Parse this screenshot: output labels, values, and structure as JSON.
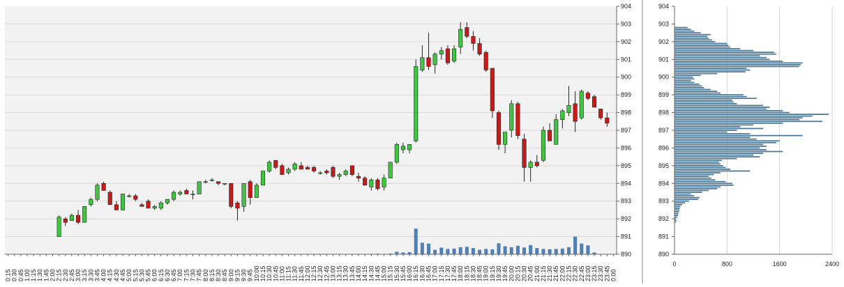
{
  "colors": {
    "plot_bg": "#f2f2f2",
    "up": "#3ec63e",
    "down": "#c91a1a",
    "volume": "#4f7fb4",
    "profile": "#4a7896",
    "grid": "#d6d6d6"
  },
  "chart_data": [
    {
      "type": "candlestick",
      "title": "",
      "ylim": [
        890,
        904
      ],
      "y_ticks": [
        "890",
        "891",
        "892",
        "893",
        "894",
        "895",
        "896",
        "897",
        "898",
        "899",
        "900",
        "901",
        "902",
        "903",
        "904"
      ],
      "x_ticks": [
        "0:15",
        "0:30",
        "0:45",
        "1:00",
        "1:15",
        "1:30",
        "1:45",
        "2:00",
        "2:15",
        "2:30",
        "2:45",
        "3:00",
        "3:15",
        "3:30",
        "3:45",
        "4:00",
        "4:15",
        "4:30",
        "4:45",
        "5:00",
        "5:15",
        "5:30",
        "5:45",
        "6:00",
        "6:15",
        "6:30",
        "6:45",
        "7:00",
        "7:15",
        "7:30",
        "7:45",
        "8:00",
        "8:15",
        "8:30",
        "8:45",
        "9:00",
        "9:15",
        "9:30",
        "9:45",
        "10:00",
        "10:15",
        "10:30",
        "10:45",
        "11:00",
        "11:15",
        "11:30",
        "11:45",
        "12:00",
        "12:15",
        "12:30",
        "12:45",
        "13:00",
        "13:15",
        "13:30",
        "13:45",
        "14:00",
        "14:15",
        "14:30",
        "14:45",
        "15:00",
        "15:15",
        "15:30",
        "15:45",
        "16:00",
        "16:15",
        "16:30",
        "16:45",
        "17:00",
        "17:15",
        "17:30",
        "17:45",
        "18:00",
        "18:15",
        "18:30",
        "18:45",
        "19:00",
        "19:15",
        "19:30",
        "19:45",
        "20:00",
        "20:15",
        "20:30",
        "20:45",
        "21:00",
        "21:15",
        "21:30",
        "21:45",
        "22:00",
        "22:15",
        "22:30",
        "22:45",
        "23:00",
        "23:15",
        "23:30",
        "23:45",
        "0:00"
      ],
      "candles": [
        {
          "t": "2:15",
          "o": 891.0,
          "h": 892.2,
          "l": 891.0,
          "c": 892.1
        },
        {
          "t": "2:30",
          "o": 892.0,
          "h": 892.1,
          "l": 891.6,
          "c": 891.8
        },
        {
          "t": "2:45",
          "o": 891.9,
          "h": 892.3,
          "l": 891.9,
          "c": 892.2
        },
        {
          "t": "3:00",
          "o": 892.2,
          "h": 892.5,
          "l": 891.7,
          "c": 891.8
        },
        {
          "t": "3:15",
          "o": 891.8,
          "h": 892.7,
          "l": 891.8,
          "c": 892.7
        },
        {
          "t": "3:30",
          "o": 892.8,
          "h": 893.2,
          "l": 892.7,
          "c": 893.1
        },
        {
          "t": "3:45",
          "o": 893.1,
          "h": 894.0,
          "l": 893.0,
          "c": 893.9
        },
        {
          "t": "4:00",
          "o": 894.0,
          "h": 894.1,
          "l": 893.6,
          "c": 893.6
        },
        {
          "t": "4:15",
          "o": 893.5,
          "h": 893.6,
          "l": 892.8,
          "c": 892.8
        },
        {
          "t": "4:30",
          "o": 892.8,
          "h": 893.0,
          "l": 892.5,
          "c": 892.5
        },
        {
          "t": "4:45",
          "o": 892.5,
          "h": 893.4,
          "l": 892.5,
          "c": 893.4
        },
        {
          "t": "5:00",
          "o": 893.3,
          "h": 893.4,
          "l": 893.2,
          "c": 893.3
        },
        {
          "t": "5:15",
          "o": 893.3,
          "h": 893.4,
          "l": 893.0,
          "c": 893.1
        },
        {
          "t": "5:30",
          "o": 892.8,
          "h": 892.9,
          "l": 892.7,
          "c": 892.7
        },
        {
          "t": "5:45",
          "o": 893.0,
          "h": 893.1,
          "l": 892.6,
          "c": 892.6
        },
        {
          "t": "6:00",
          "o": 892.6,
          "h": 892.8,
          "l": 892.5,
          "c": 892.7
        },
        {
          "t": "6:15",
          "o": 892.6,
          "h": 893.0,
          "l": 892.5,
          "c": 892.9
        },
        {
          "t": "6:30",
          "o": 892.9,
          "h": 893.1,
          "l": 892.8,
          "c": 893.1
        },
        {
          "t": "6:45",
          "o": 893.1,
          "h": 893.6,
          "l": 893.0,
          "c": 893.5
        },
        {
          "t": "7:00",
          "o": 893.4,
          "h": 893.6,
          "l": 893.3,
          "c": 893.5
        },
        {
          "t": "7:15",
          "o": 893.6,
          "h": 893.7,
          "l": 893.4,
          "c": 893.4
        },
        {
          "t": "7:30",
          "o": 893.4,
          "h": 893.6,
          "l": 893.1,
          "c": 893.4
        },
        {
          "t": "7:45",
          "o": 893.4,
          "h": 894.1,
          "l": 893.4,
          "c": 894.1
        },
        {
          "t": "8:00",
          "o": 894.1,
          "h": 894.2,
          "l": 894.0,
          "c": 894.1
        },
        {
          "t": "8:15",
          "o": 894.2,
          "h": 894.3,
          "l": 894.1,
          "c": 894.2
        },
        {
          "t": "8:30",
          "o": 894.1,
          "h": 894.1,
          "l": 893.9,
          "c": 894.0
        },
        {
          "t": "8:45",
          "o": 894.0,
          "h": 894.0,
          "l": 893.9,
          "c": 894.0
        },
        {
          "t": "9:00",
          "o": 894.0,
          "h": 894.0,
          "l": 892.6,
          "c": 892.7
        },
        {
          "t": "9:15",
          "o": 892.9,
          "h": 893.0,
          "l": 891.9,
          "c": 892.6
        },
        {
          "t": "9:30",
          "o": 892.7,
          "h": 894.0,
          "l": 892.4,
          "c": 894.0
        },
        {
          "t": "9:45",
          "o": 894.1,
          "h": 894.2,
          "l": 892.8,
          "c": 893.2
        },
        {
          "t": "10:00",
          "o": 893.2,
          "h": 894.0,
          "l": 893.2,
          "c": 893.9
        },
        {
          "t": "10:15",
          "o": 893.9,
          "h": 894.7,
          "l": 893.9,
          "c": 894.7
        },
        {
          "t": "10:30",
          "o": 894.7,
          "h": 895.3,
          "l": 894.6,
          "c": 895.2
        },
        {
          "t": "10:45",
          "o": 895.3,
          "h": 895.3,
          "l": 894.8,
          "c": 894.9
        },
        {
          "t": "11:00",
          "o": 895.0,
          "h": 895.1,
          "l": 894.5,
          "c": 894.5
        },
        {
          "t": "11:15",
          "o": 894.6,
          "h": 894.9,
          "l": 894.5,
          "c": 894.8
        },
        {
          "t": "11:30",
          "o": 894.8,
          "h": 895.2,
          "l": 894.7,
          "c": 895.1
        },
        {
          "t": "11:45",
          "o": 895.0,
          "h": 895.2,
          "l": 894.8,
          "c": 894.8
        },
        {
          "t": "12:00",
          "o": 894.9,
          "h": 895.0,
          "l": 894.8,
          "c": 894.8
        },
        {
          "t": "12:15",
          "o": 894.9,
          "h": 895.0,
          "l": 894.6,
          "c": 894.7
        },
        {
          "t": "12:30",
          "o": 894.6,
          "h": 894.7,
          "l": 894.5,
          "c": 894.6
        },
        {
          "t": "12:45",
          "o": 894.7,
          "h": 894.8,
          "l": 894.5,
          "c": 894.6
        },
        {
          "t": "13:00",
          "o": 894.9,
          "h": 895.0,
          "l": 894.3,
          "c": 894.4
        },
        {
          "t": "13:15",
          "o": 894.4,
          "h": 894.6,
          "l": 894.2,
          "c": 894.5
        },
        {
          "t": "13:30",
          "o": 894.5,
          "h": 894.8,
          "l": 894.4,
          "c": 894.7
        },
        {
          "t": "13:45",
          "o": 895.0,
          "h": 895.0,
          "l": 894.4,
          "c": 894.5
        },
        {
          "t": "14:00",
          "o": 894.4,
          "h": 894.6,
          "l": 894.1,
          "c": 894.3
        },
        {
          "t": "14:15",
          "o": 894.3,
          "h": 894.4,
          "l": 893.9,
          "c": 893.9
        },
        {
          "t": "14:30",
          "o": 893.8,
          "h": 894.3,
          "l": 893.6,
          "c": 894.2
        },
        {
          "t": "14:45",
          "o": 894.2,
          "h": 894.3,
          "l": 893.6,
          "c": 893.7
        },
        {
          "t": "15:00",
          "o": 893.8,
          "h": 894.5,
          "l": 893.6,
          "c": 894.3
        },
        {
          "t": "15:15",
          "o": 894.3,
          "h": 895.2,
          "l": 894.3,
          "c": 895.2
        },
        {
          "t": "15:30",
          "o": 895.2,
          "h": 896.3,
          "l": 895.1,
          "c": 896.2
        },
        {
          "t": "15:45",
          "o": 895.9,
          "h": 896.3,
          "l": 895.7,
          "c": 896.1
        },
        {
          "t": "16:00",
          "o": 895.9,
          "h": 896.2,
          "l": 895.7,
          "c": 896.2
        },
        {
          "t": "16:15",
          "o": 896.4,
          "h": 901.0,
          "l": 896.3,
          "c": 900.6
        },
        {
          "t": "16:30",
          "o": 900.4,
          "h": 901.8,
          "l": 900.3,
          "c": 901.1
        },
        {
          "t": "16:45",
          "o": 901.1,
          "h": 902.5,
          "l": 900.4,
          "c": 900.6
        },
        {
          "t": "17:00",
          "o": 900.7,
          "h": 901.4,
          "l": 900.2,
          "c": 901.3
        },
        {
          "t": "17:15",
          "o": 901.3,
          "h": 901.7,
          "l": 901.0,
          "c": 901.5
        },
        {
          "t": "17:30",
          "o": 901.6,
          "h": 901.8,
          "l": 900.7,
          "c": 900.8
        },
        {
          "t": "17:45",
          "o": 900.9,
          "h": 901.8,
          "l": 900.8,
          "c": 901.6
        },
        {
          "t": "18:00",
          "o": 901.7,
          "h": 903.1,
          "l": 901.3,
          "c": 902.7
        },
        {
          "t": "18:15",
          "o": 902.8,
          "h": 903.1,
          "l": 902.2,
          "c": 902.3
        },
        {
          "t": "18:30",
          "o": 902.3,
          "h": 902.6,
          "l": 901.5,
          "c": 901.9
        },
        {
          "t": "18:45",
          "o": 901.9,
          "h": 902.2,
          "l": 901.2,
          "c": 901.3
        },
        {
          "t": "19:00",
          "o": 901.4,
          "h": 901.5,
          "l": 900.3,
          "c": 900.4
        },
        {
          "t": "19:15",
          "o": 900.5,
          "h": 900.5,
          "l": 897.7,
          "c": 898.1
        },
        {
          "t": "19:30",
          "o": 898.0,
          "h": 898.1,
          "l": 895.9,
          "c": 896.2
        },
        {
          "t": "19:45",
          "o": 896.2,
          "h": 896.8,
          "l": 895.7,
          "c": 896.9
        },
        {
          "t": "20:00",
          "o": 897.0,
          "h": 898.7,
          "l": 896.6,
          "c": 898.5
        },
        {
          "t": "20:15",
          "o": 898.5,
          "h": 898.6,
          "l": 896.5,
          "c": 896.7
        },
        {
          "t": "20:30",
          "o": 896.5,
          "h": 896.8,
          "l": 894.1,
          "c": 894.9
        },
        {
          "t": "20:45",
          "o": 894.9,
          "h": 895.3,
          "l": 894.1,
          "c": 895.2
        },
        {
          "t": "21:00",
          "o": 895.2,
          "h": 895.6,
          "l": 894.9,
          "c": 895.0
        },
        {
          "t": "21:15",
          "o": 895.3,
          "h": 897.2,
          "l": 895.2,
          "c": 897.0
        },
        {
          "t": "21:30",
          "o": 897.0,
          "h": 897.4,
          "l": 896.5,
          "c": 896.4
        },
        {
          "t": "21:45",
          "o": 896.2,
          "h": 897.9,
          "l": 896.2,
          "c": 897.6
        },
        {
          "t": "22:00",
          "o": 897.6,
          "h": 898.2,
          "l": 897.1,
          "c": 898.1
        },
        {
          "t": "22:15",
          "o": 898.0,
          "h": 899.5,
          "l": 897.8,
          "c": 898.4
        },
        {
          "t": "22:30",
          "o": 898.5,
          "h": 899.2,
          "l": 896.9,
          "c": 897.5
        },
        {
          "t": "22:45",
          "o": 897.7,
          "h": 899.3,
          "l": 897.6,
          "c": 899.2
        },
        {
          "t": "23:00",
          "o": 899.1,
          "h": 899.2,
          "l": 898.7,
          "c": 898.8
        },
        {
          "t": "23:15",
          "o": 898.9,
          "h": 899.0,
          "l": 898.3,
          "c": 898.3
        },
        {
          "t": "23:30",
          "o": 898.2,
          "h": 898.2,
          "l": 897.6,
          "c": 897.7
        },
        {
          "t": "23:45",
          "o": 897.7,
          "h": 898.0,
          "l": 897.2,
          "c": 897.4
        }
      ],
      "volume": [
        {
          "t": "2:15",
          "v": 0.01
        },
        {
          "t": "2:30",
          "v": 0.01
        },
        {
          "t": "14:45",
          "v": 0.03
        },
        {
          "t": "15:15",
          "v": 0.04
        },
        {
          "t": "15:30",
          "v": 0.14
        },
        {
          "t": "15:45",
          "v": 0.1
        },
        {
          "t": "16:00",
          "v": 0.12
        },
        {
          "t": "16:15",
          "v": 1.45
        },
        {
          "t": "16:30",
          "v": 0.65
        },
        {
          "t": "16:45",
          "v": 0.6
        },
        {
          "t": "17:00",
          "v": 0.25
        },
        {
          "t": "17:15",
          "v": 0.38
        },
        {
          "t": "17:30",
          "v": 0.3
        },
        {
          "t": "17:45",
          "v": 0.32
        },
        {
          "t": "18:00",
          "v": 0.4
        },
        {
          "t": "18:15",
          "v": 0.42
        },
        {
          "t": "18:30",
          "v": 0.35
        },
        {
          "t": "18:45",
          "v": 0.25
        },
        {
          "t": "19:00",
          "v": 0.3
        },
        {
          "t": "19:15",
          "v": 0.28
        },
        {
          "t": "19:30",
          "v": 0.62
        },
        {
          "t": "19:45",
          "v": 0.45
        },
        {
          "t": "20:00",
          "v": 0.4
        },
        {
          "t": "20:15",
          "v": 0.48
        },
        {
          "t": "20:30",
          "v": 0.38
        },
        {
          "t": "20:45",
          "v": 0.52
        },
        {
          "t": "21:00",
          "v": 0.35
        },
        {
          "t": "21:15",
          "v": 0.3
        },
        {
          "t": "21:30",
          "v": 0.28
        },
        {
          "t": "21:45",
          "v": 0.3
        },
        {
          "t": "22:00",
          "v": 0.32
        },
        {
          "t": "22:15",
          "v": 0.4
        },
        {
          "t": "22:30",
          "v": 1.0
        },
        {
          "t": "22:45",
          "v": 0.6
        },
        {
          "t": "23:00",
          "v": 0.5
        },
        {
          "t": "23:15",
          "v": 0.1
        }
      ]
    },
    {
      "type": "bar",
      "orientation": "horizontal",
      "title": "",
      "ylim": [
        890,
        904
      ],
      "xlim": [
        0,
        2400
      ],
      "x_ticks": [
        "0",
        "800",
        "1600",
        "2400"
      ],
      "y_ticks": [
        "890",
        "891",
        "892",
        "893",
        "894",
        "895",
        "896",
        "897",
        "898",
        "899",
        "900",
        "901",
        "902",
        "903",
        "904"
      ],
      "y_step": 0.1,
      "y_start": 891.8,
      "values": [
        20,
        30,
        25,
        45,
        55,
        60,
        70,
        75,
        80,
        90,
        120,
        160,
        220,
        360,
        380,
        300,
        250,
        420,
        520,
        650,
        700,
        900,
        880,
        780,
        620,
        560,
        520,
        600,
        700,
        1150,
        850,
        780,
        740,
        700,
        680,
        720,
        950,
        1300,
        1200,
        1350,
        1650,
        1400,
        1300,
        1400,
        1350,
        1550,
        1600,
        1250,
        1150,
        1950,
        1150,
        800,
        950,
        1350,
        1000,
        1200,
        1650,
        2250,
        1900,
        1950,
        2100,
        2350,
        1750,
        1650,
        1400,
        1450,
        1350,
        950,
        900,
        880,
        1250,
        1100,
        1050,
        700,
        650,
        550,
        450,
        420,
        380,
        300,
        250,
        300,
        280,
        400,
        650,
        1080,
        1150,
        1100,
        1900,
        1920,
        1950,
        1650,
        1450,
        1400,
        1300,
        1550,
        1520,
        1200,
        1000,
        850,
        820,
        800,
        620,
        570,
        520,
        500,
        550,
        400,
        300,
        250,
        200
      ]
    }
  ]
}
